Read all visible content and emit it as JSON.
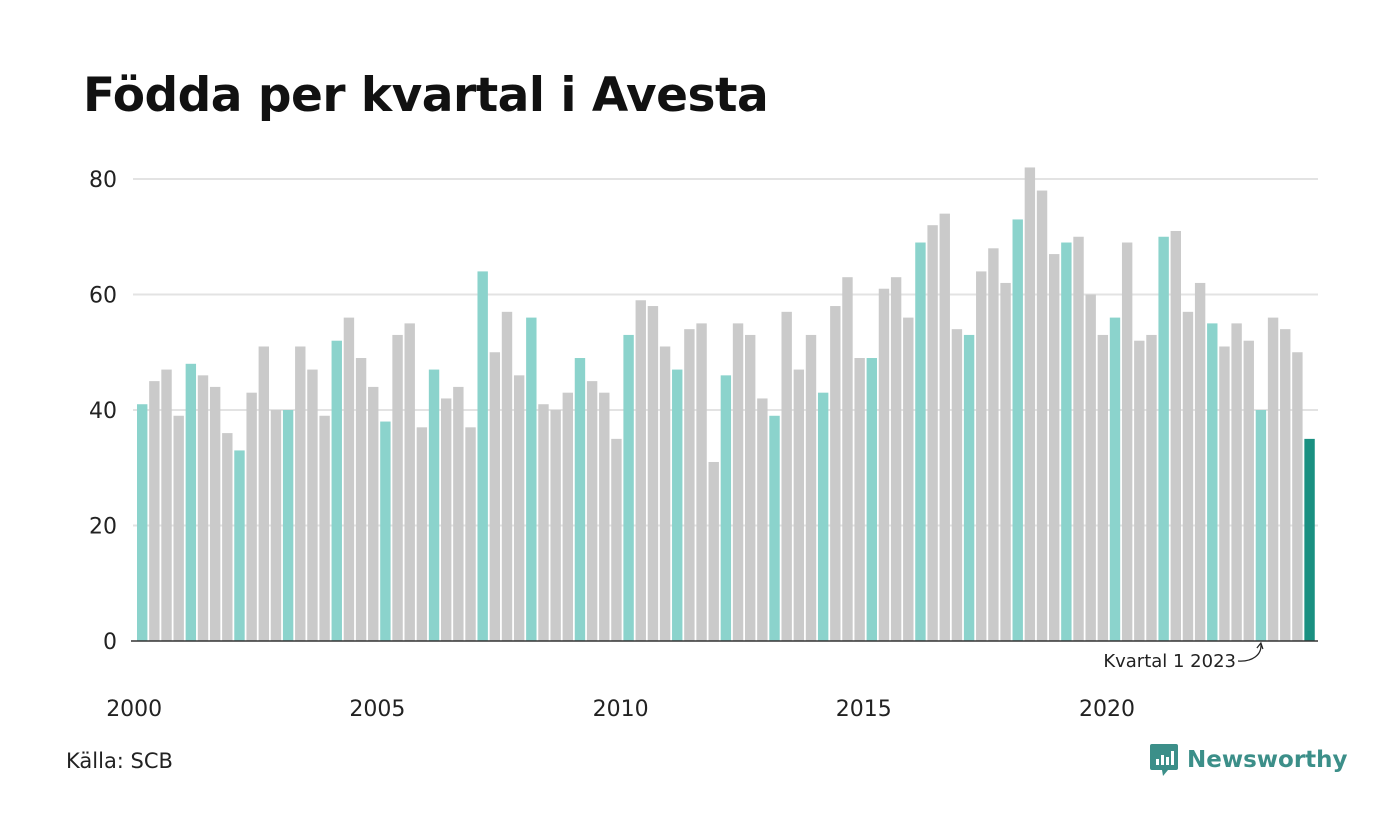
{
  "title": "Födda per kvartal i Avesta",
  "source": "Källa: SCB",
  "brand": {
    "name": "Newsworthy",
    "icon": "newsworthy-logo-icon"
  },
  "colors": {
    "highlight_quarter": "#8bd3cc",
    "other_quarter": "#cacaca",
    "latest": "#1a9081",
    "grid": "#e3e3e3",
    "axis": "#333333",
    "brand": "#3c8f89"
  },
  "chart_data": {
    "type": "bar",
    "title": "Födda per kvartal i Avesta",
    "xlabel": "",
    "ylabel": "",
    "ylim": [
      0,
      80
    ],
    "yticks": [
      0,
      20,
      40,
      60,
      80
    ],
    "x_tick_labels": [
      "2000",
      "2005",
      "2010",
      "2015",
      "2020"
    ],
    "grid": true,
    "start": {
      "year": 2000,
      "quarter": 1
    },
    "highlight_quarter": 1,
    "annotation": {
      "text": "Kvartal 1 2023",
      "target": "2023 Q1"
    },
    "categories": [
      "2000 Q1",
      "2000 Q2",
      "2000 Q3",
      "2000 Q4",
      "2001 Q1",
      "2001 Q2",
      "2001 Q3",
      "2001 Q4",
      "2002 Q1",
      "2002 Q2",
      "2002 Q3",
      "2002 Q4",
      "2003 Q1",
      "2003 Q2",
      "2003 Q3",
      "2003 Q4",
      "2004 Q1",
      "2004 Q2",
      "2004 Q3",
      "2004 Q4",
      "2005 Q1",
      "2005 Q2",
      "2005 Q3",
      "2005 Q4",
      "2006 Q1",
      "2006 Q2",
      "2006 Q3",
      "2006 Q4",
      "2007 Q1",
      "2007 Q2",
      "2007 Q3",
      "2007 Q4",
      "2008 Q1",
      "2008 Q2",
      "2008 Q3",
      "2008 Q4",
      "2009 Q1",
      "2009 Q2",
      "2009 Q3",
      "2009 Q4",
      "2010 Q1",
      "2010 Q2",
      "2010 Q3",
      "2010 Q4",
      "2011 Q1",
      "2011 Q2",
      "2011 Q3",
      "2011 Q4",
      "2012 Q1",
      "2012 Q2",
      "2012 Q3",
      "2012 Q4",
      "2013 Q1",
      "2013 Q2",
      "2013 Q3",
      "2013 Q4",
      "2014 Q1",
      "2014 Q2",
      "2014 Q3",
      "2014 Q4",
      "2015 Q1",
      "2015 Q2",
      "2015 Q3",
      "2015 Q4",
      "2016 Q1",
      "2016 Q2",
      "2016 Q3",
      "2016 Q4",
      "2017 Q1",
      "2017 Q2",
      "2017 Q3",
      "2017 Q4",
      "2018 Q1",
      "2018 Q2",
      "2018 Q3",
      "2018 Q4",
      "2019 Q1",
      "2019 Q2",
      "2019 Q3",
      "2019 Q4",
      "2020 Q1",
      "2020 Q2",
      "2020 Q3",
      "2020 Q4",
      "2021 Q1",
      "2021 Q2",
      "2021 Q3",
      "2021 Q4",
      "2022 Q1",
      "2022 Q2",
      "2022 Q3",
      "2022 Q4",
      "2023 Q1",
      "2023 Q2",
      "2023 Q3",
      "2023 Q4",
      "2024 Q1"
    ],
    "values": [
      41,
      45,
      47,
      39,
      48,
      46,
      44,
      36,
      33,
      43,
      51,
      40,
      40,
      51,
      47,
      39,
      52,
      56,
      49,
      44,
      38,
      53,
      55,
      37,
      47,
      42,
      44,
      37,
      64,
      50,
      57,
      46,
      56,
      41,
      40,
      43,
      49,
      45,
      43,
      35,
      53,
      59,
      58,
      51,
      47,
      54,
      55,
      31,
      46,
      55,
      53,
      42,
      39,
      57,
      47,
      53,
      43,
      58,
      63,
      49,
      49,
      61,
      63,
      56,
      69,
      72,
      74,
      54,
      53,
      64,
      68,
      62,
      73,
      82,
      78,
      67,
      69,
      70,
      60,
      53,
      56,
      69,
      52,
      53,
      70,
      71,
      57,
      62,
      55,
      51,
      55,
      52,
      40,
      56,
      54,
      50,
      35
    ]
  }
}
